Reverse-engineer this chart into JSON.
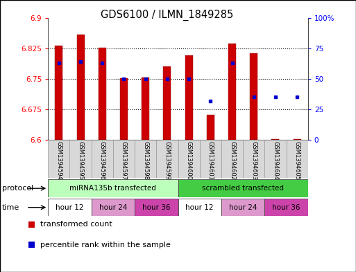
{
  "title": "GDS6100 / ILMN_1849285",
  "samples": [
    "GSM1394594",
    "GSM1394595",
    "GSM1394596",
    "GSM1394597",
    "GSM1394598",
    "GSM1394599",
    "GSM1394600",
    "GSM1394601",
    "GSM1394602",
    "GSM1394603",
    "GSM1394604",
    "GSM1394605"
  ],
  "bar_values": [
    6.831,
    6.858,
    6.826,
    6.752,
    6.753,
    6.781,
    6.807,
    6.662,
    6.836,
    6.812,
    6.603,
    6.602
  ],
  "percentile_values": [
    63,
    64,
    63,
    50,
    50,
    50,
    50,
    32,
    63,
    35,
    35,
    35
  ],
  "ymin": 6.6,
  "ymax": 6.9,
  "yticks_left": [
    6.6,
    6.675,
    6.75,
    6.825,
    6.9
  ],
  "yticks_right": [
    0,
    25,
    50,
    75,
    100
  ],
  "bar_color": "#cc0000",
  "dot_color": "#0000cc",
  "sample_bg": "#d8d8d8",
  "protocol_groups": [
    {
      "label": "miRNA135b transfected",
      "start": 0,
      "end": 5,
      "color": "#bbffbb"
    },
    {
      "label": "scrambled transfected",
      "start": 6,
      "end": 11,
      "color": "#44cc44"
    }
  ],
  "time_groups": [
    {
      "label": "hour 12",
      "start": 0,
      "end": 1,
      "color": "#ffffff"
    },
    {
      "label": "hour 24",
      "start": 2,
      "end": 3,
      "color": "#dd99cc"
    },
    {
      "label": "hour 36",
      "start": 4,
      "end": 5,
      "color": "#cc44aa"
    },
    {
      "label": "hour 12",
      "start": 6,
      "end": 7,
      "color": "#ffffff"
    },
    {
      "label": "hour 24",
      "start": 8,
      "end": 9,
      "color": "#dd99cc"
    },
    {
      "label": "hour 36",
      "start": 10,
      "end": 11,
      "color": "#cc44aa"
    }
  ],
  "legend_items": [
    {
      "label": "transformed count",
      "color": "#cc0000"
    },
    {
      "label": "percentile rank within the sample",
      "color": "#0000cc"
    }
  ],
  "fig_width": 5.13,
  "fig_height": 3.93,
  "fig_dpi": 100
}
